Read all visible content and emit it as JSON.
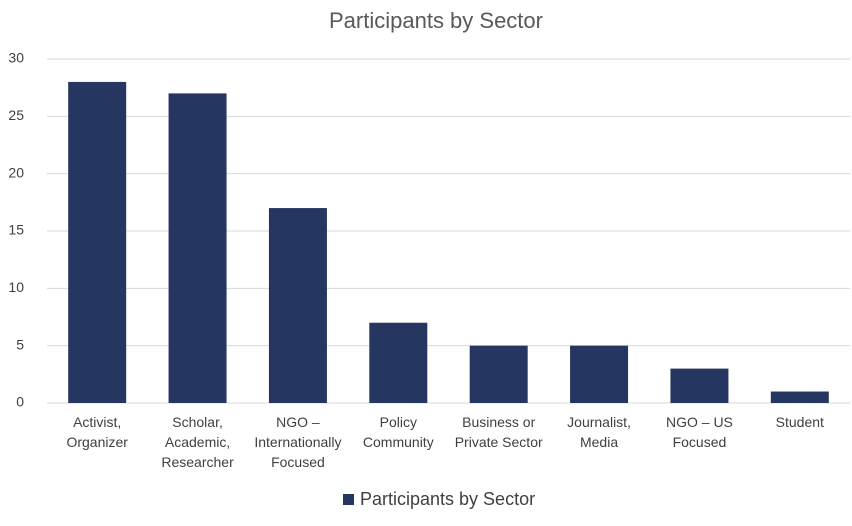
{
  "chart_data": {
    "type": "bar",
    "title": "Participants by Sector",
    "categories": [
      "Activist, Organizer",
      "Scholar, Academic, Researcher",
      "NGO – Internationally Focused",
      "Policy Community",
      "Business or Private Sector",
      "Journalist, Media",
      "NGO – US Focused",
      "Student"
    ],
    "series": [
      {
        "name": "Participants by Sector",
        "color": "#253760",
        "values": [
          28,
          27,
          17,
          7,
          5,
          5,
          3,
          1
        ]
      }
    ],
    "ylim": [
      0,
      30
    ],
    "yticks": [
      0,
      5,
      10,
      15,
      20,
      25,
      30
    ],
    "grid": true,
    "legend": "bottom"
  }
}
